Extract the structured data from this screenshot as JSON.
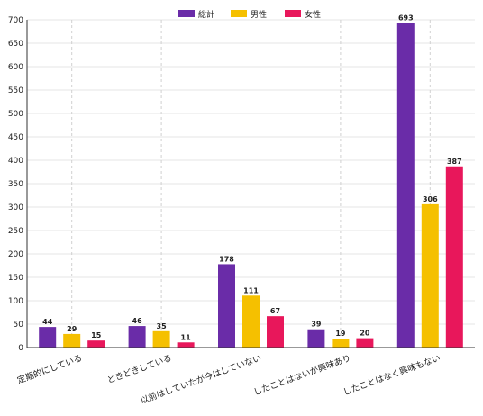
{
  "chart_data": {
    "type": "bar",
    "categories": [
      "定期的にしている",
      "ときどきしている",
      "以前はしていたが今はしていない",
      "したことはないが興味あり",
      "したことはなく興味もない"
    ],
    "series": [
      {
        "name": "総計",
        "color": "#6a2ca8",
        "values": [
          44,
          46,
          178,
          39,
          693
        ]
      },
      {
        "name": "男性",
        "color": "#f5c000",
        "values": [
          29,
          35,
          111,
          19,
          306
        ]
      },
      {
        "name": "女性",
        "color": "#e8175b",
        "values": [
          15,
          11,
          67,
          20,
          387
        ]
      }
    ],
    "ylim": [
      0,
      700
    ],
    "yticks": [
      0,
      50,
      100,
      150,
      200,
      250,
      300,
      350,
      400,
      450,
      500,
      550,
      600,
      650,
      700
    ],
    "grid": true,
    "legend_position": "top-center",
    "data_labels": true
  }
}
